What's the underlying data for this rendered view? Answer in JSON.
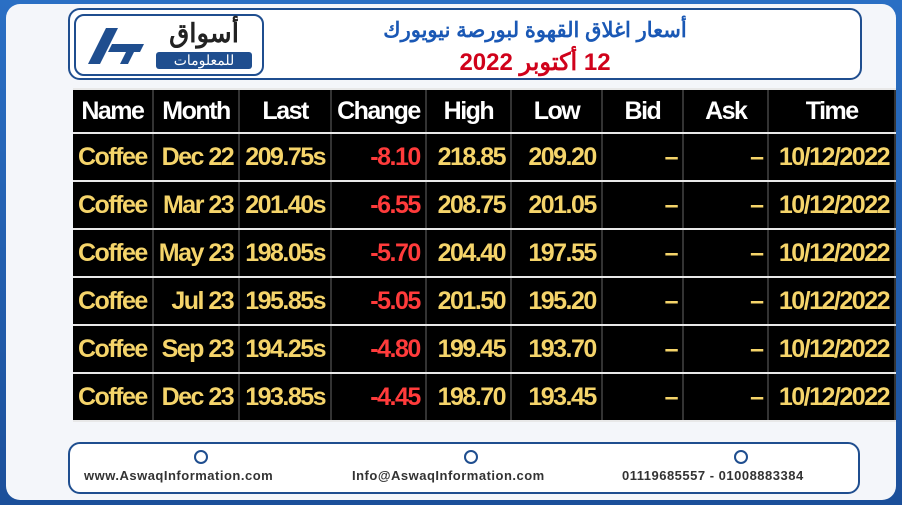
{
  "header": {
    "logo_text": "أسواق",
    "logo_subtext": "للمعلومات",
    "title": "أسعار اغلاق القهوة لبورصة نيويورك",
    "date": "12 أكتوبر 2022"
  },
  "table": {
    "columns": [
      "Name",
      "Month",
      "Last",
      "Change",
      "High",
      "Low",
      "Bid",
      "Ask",
      "Time"
    ],
    "rows": [
      [
        "Coffee",
        "Dec 22",
        "209.75s",
        "-8.10",
        "218.85",
        "209.20",
        "–",
        "–",
        "10/12/2022"
      ],
      [
        "Coffee",
        "Mar 23",
        "201.40s",
        "-6.55",
        "208.75",
        "201.05",
        "–",
        "–",
        "10/12/2022"
      ],
      [
        "Coffee",
        "May 23",
        "198.05s",
        "-5.70",
        "204.40",
        "197.55",
        "–",
        "–",
        "10/12/2022"
      ],
      [
        "Coffee",
        "Jul 23",
        "195.85s",
        "-5.05",
        "201.50",
        "195.20",
        "–",
        "–",
        "10/12/2022"
      ],
      [
        "Coffee",
        "Sep 23",
        "194.25s",
        "-4.80",
        "199.45",
        "193.70",
        "–",
        "–",
        "10/12/2022"
      ],
      [
        "Coffee",
        "Dec 23",
        "193.85s",
        "-4.45",
        "198.70",
        "193.45",
        "–",
        "–",
        "10/12/2022"
      ]
    ]
  },
  "footer": {
    "website": "www.AswaqInformation.com",
    "email": "Info@AswaqInformation.com",
    "phone": "01119685557 - 01008883384"
  }
}
